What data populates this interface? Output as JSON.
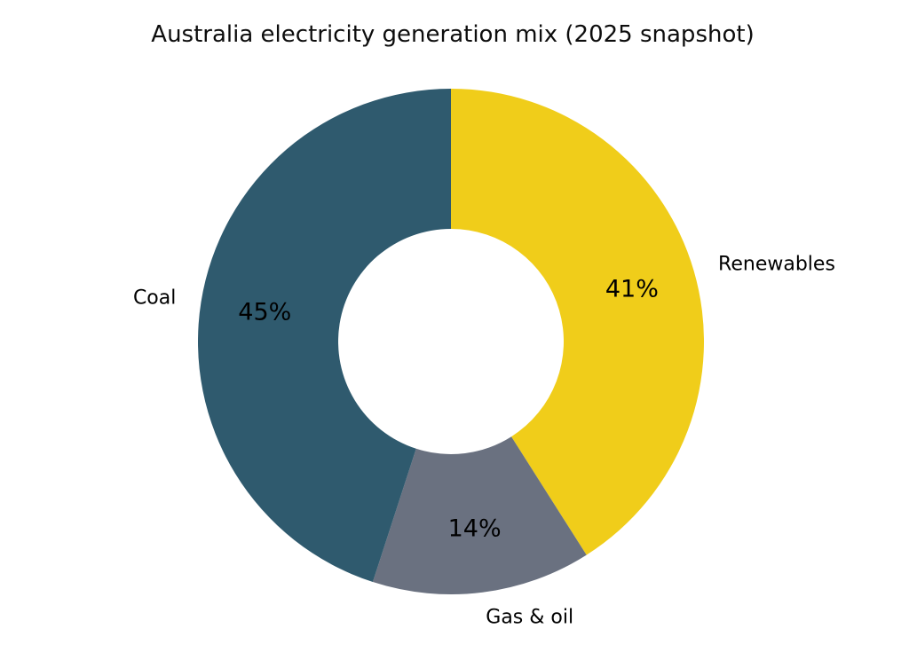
{
  "page": {
    "background": "#ffffff"
  },
  "chart_data": {
    "type": "pie",
    "subtype": "donut",
    "title": "Australia electricity generation mix (2025 snapshot)",
    "categories": [
      "Renewables",
      "Gas & oil",
      "Coal"
    ],
    "values": [
      41,
      14,
      45
    ],
    "percent_labels": [
      "41%",
      "14%",
      "45%"
    ],
    "colors": [
      "#F0CD1A",
      "#6A7180",
      "#2F5A6E"
    ],
    "start_angle_deg_from_top": 0,
    "direction": "clockwise",
    "donut_hole_ratio": 0.4456,
    "legend": "none",
    "grid": "off",
    "label_placement": "category labels outside wedges, percent labels inside wedges"
  }
}
